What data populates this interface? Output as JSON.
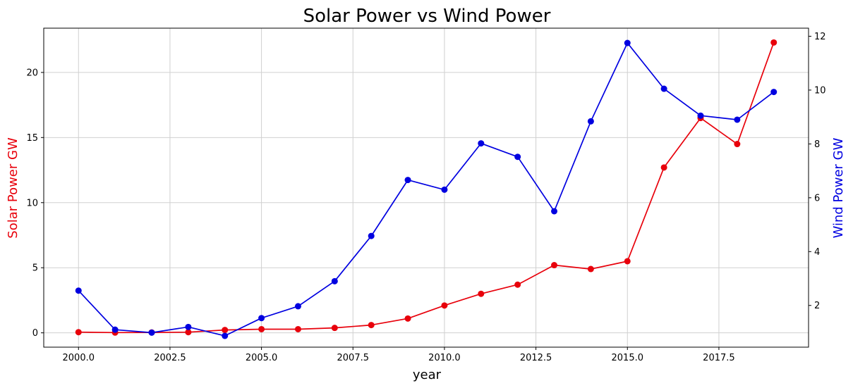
{
  "chart_data": {
    "type": "line",
    "title": "Solar Power vs Wind Power",
    "xlabel": "year",
    "ylabel_left": "Solar Power GW",
    "ylabel_right": "Wind Power GW",
    "xlim": [
      1999.05,
      2019.95
    ],
    "ylim_left": [
      -1.1,
      23.4
    ],
    "ylim_right": [
      0.45,
      12.3
    ],
    "x_ticks": [
      2000.0,
      2002.5,
      2005.0,
      2007.5,
      2010.0,
      2012.5,
      2015.0,
      2017.5
    ],
    "x_tick_labels": [
      "2000.0",
      "2002.5",
      "2005.0",
      "2007.5",
      "2010.0",
      "2012.5",
      "2015.0",
      "2017.5"
    ],
    "y_left_ticks": [
      0,
      5,
      10,
      15,
      20
    ],
    "y_left_tick_labels": [
      "0",
      "5",
      "10",
      "15",
      "20"
    ],
    "y_right_ticks": [
      2,
      4,
      6,
      8,
      10,
      12
    ],
    "y_right_tick_labels": [
      "2",
      "4",
      "6",
      "8",
      "10",
      "12"
    ],
    "grid": true,
    "x": [
      2000,
      2001,
      2002,
      2003,
      2004,
      2005,
      2006,
      2007,
      2008,
      2009,
      2010,
      2011,
      2012,
      2013,
      2014,
      2015,
      2016,
      2017,
      2018,
      2019
    ],
    "series": [
      {
        "name": "Solar Power GW",
        "axis": "left",
        "color": "#e8000b",
        "values": [
          0.05,
          0.02,
          0.03,
          0.05,
          0.22,
          0.28,
          0.28,
          0.38,
          0.6,
          1.1,
          2.1,
          3.0,
          3.7,
          5.2,
          4.9,
          5.5,
          12.7,
          16.5,
          14.5,
          22.3
        ]
      },
      {
        "name": "Wind Power GW",
        "axis": "right",
        "color": "#0000e0",
        "values": [
          2.55,
          1.1,
          0.99,
          1.2,
          0.87,
          1.53,
          1.97,
          2.9,
          4.58,
          6.66,
          6.3,
          8.02,
          7.52,
          5.5,
          8.84,
          11.75,
          10.05,
          9.05,
          8.9,
          9.93
        ]
      }
    ]
  }
}
